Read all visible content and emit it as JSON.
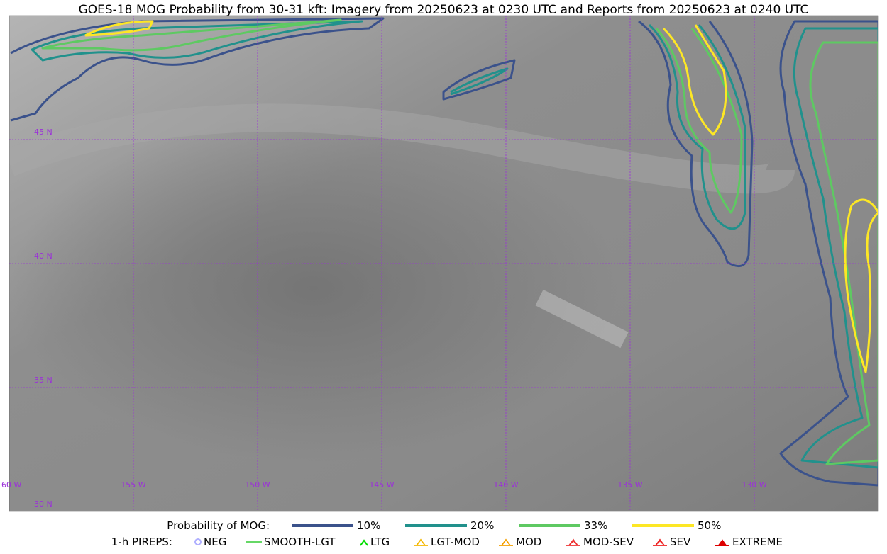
{
  "title": "GOES-18 MOG Probability from 30-31 kft: Imagery from 20250623 at 0230 UTC and Reports from 20250623 at 0240 UTC",
  "map": {
    "lat_labels": [
      "45 N",
      "40 N",
      "35 N",
      "30 N"
    ],
    "lon_labels": [
      "60 W",
      "155 W",
      "150 W",
      "145 W",
      "140 W",
      "135 W",
      "130 W"
    ]
  },
  "legend": {
    "title": "Probability of MOG:",
    "items": [
      {
        "label": "10%",
        "color": "#3b528b"
      },
      {
        "label": "20%",
        "color": "#21918c"
      },
      {
        "label": "33%",
        "color": "#5ec962"
      },
      {
        "label": "50%",
        "color": "#fde725"
      }
    ]
  },
  "pireps": {
    "title": "1-h PIREPS:",
    "items": [
      {
        "label": "NEG",
        "color": "#b0b0ff"
      },
      {
        "label": "SMOOTH-LGT",
        "color": "#33cc33"
      },
      {
        "label": "LTG",
        "color": "#00dd00"
      },
      {
        "label": "LGT-MOD",
        "color": "#f5b800"
      },
      {
        "label": "MOD",
        "color": "#f5a000"
      },
      {
        "label": "MOD-SEV",
        "color": "#ee3333"
      },
      {
        "label": "SEV",
        "color": "#ee2222"
      },
      {
        "label": "EXTREME",
        "color": "#dd0000"
      }
    ]
  }
}
